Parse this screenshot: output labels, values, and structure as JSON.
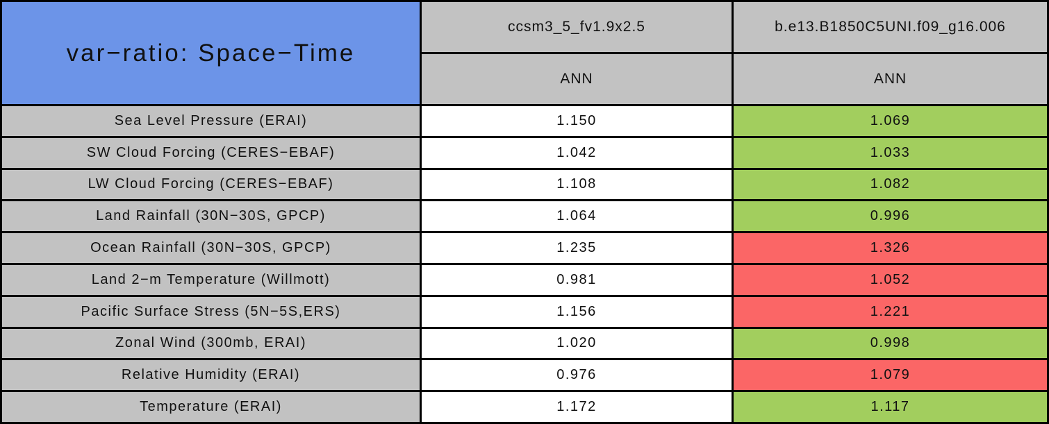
{
  "chart_data": {
    "type": "table",
    "title": "var−ratio: Space−Time",
    "column_groups": [
      {
        "model": "ccsm3_5_fv1.9x2.5",
        "season": "ANN"
      },
      {
        "model": "b.e13.B1850C5UNI.f09_g16.006",
        "season": "ANN"
      }
    ],
    "rows": [
      {
        "label": "Sea Level Pressure (ERAI)",
        "values": [
          "1.150",
          "1.069"
        ],
        "status2": "good"
      },
      {
        "label": "SW Cloud Forcing (CERES−EBAF)",
        "values": [
          "1.042",
          "1.033"
        ],
        "status2": "good"
      },
      {
        "label": "LW Cloud Forcing (CERES−EBAF)",
        "values": [
          "1.108",
          "1.082"
        ],
        "status2": "good"
      },
      {
        "label": "Land Rainfall (30N−30S, GPCP)",
        "values": [
          "1.064",
          "0.996"
        ],
        "status2": "good"
      },
      {
        "label": "Ocean Rainfall (30N−30S, GPCP)",
        "values": [
          "1.235",
          "1.326"
        ],
        "status2": "bad"
      },
      {
        "label": "Land 2−m Temperature (Willmott)",
        "values": [
          "0.981",
          "1.052"
        ],
        "status2": "bad"
      },
      {
        "label": "Pacific Surface Stress (5N−5S,ERS)",
        "values": [
          "1.156",
          "1.221"
        ],
        "status2": "bad"
      },
      {
        "label": "Zonal Wind (300mb, ERAI)",
        "values": [
          "1.020",
          "0.998"
        ],
        "status2": "good"
      },
      {
        "label": "Relative Humidity (ERAI)",
        "values": [
          "0.976",
          "1.079"
        ],
        "status2": "bad"
      },
      {
        "label": "Temperature (ERAI)",
        "values": [
          "1.172",
          "1.117"
        ],
        "status2": "good"
      }
    ],
    "layout": {
      "grid": "black 3px borders",
      "legend": "none"
    }
  },
  "colors": {
    "title_bg": "#6C94E8",
    "header_bg": "#C2C2C2",
    "value_bg": "#FFFFFF",
    "good_bg": "#A2CE5E",
    "bad_bg": "#FB6666",
    "border": "#000000"
  }
}
